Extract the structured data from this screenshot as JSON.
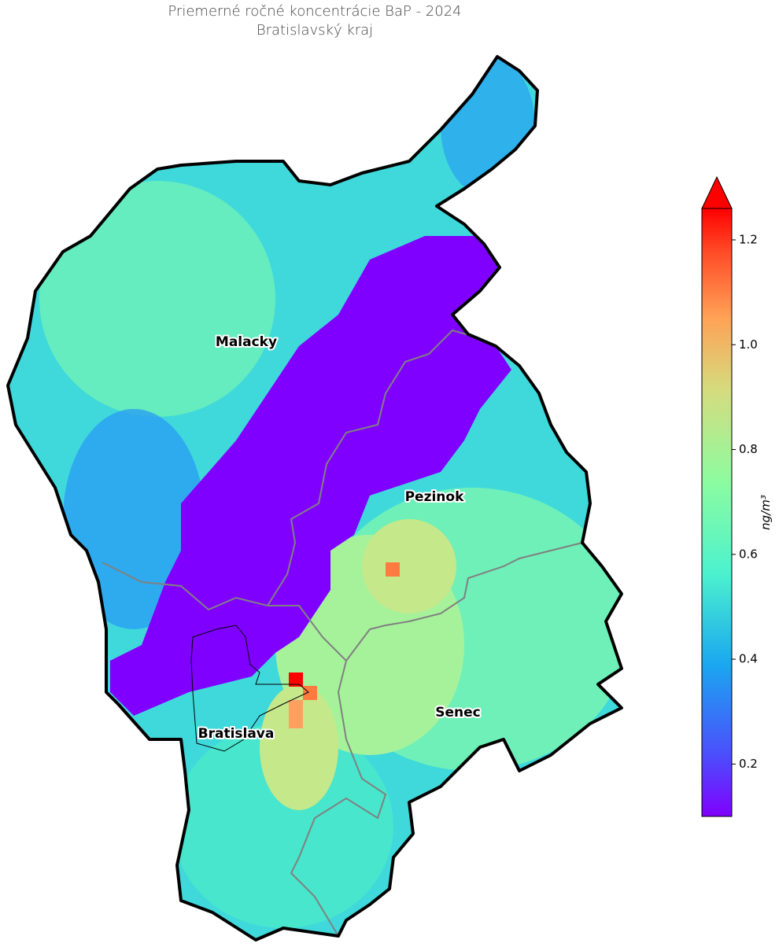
{
  "chart_data": {
    "type": "map",
    "title": "Priemerné ročné koncentrácie BaP - 2024",
    "subtitle": "Bratislavský kraj",
    "regions": [
      "Malacky",
      "Pezinok",
      "Senec",
      "Bratislava"
    ],
    "colorbar": {
      "label": "ng/m³",
      "lim": [
        0.1,
        1.26
      ],
      "ticks": [
        0.2,
        0.4,
        0.6,
        0.8,
        {
          "value": 1,
          "label": "1.0"
        },
        1.2
      ],
      "extend": "max"
    }
  }
}
